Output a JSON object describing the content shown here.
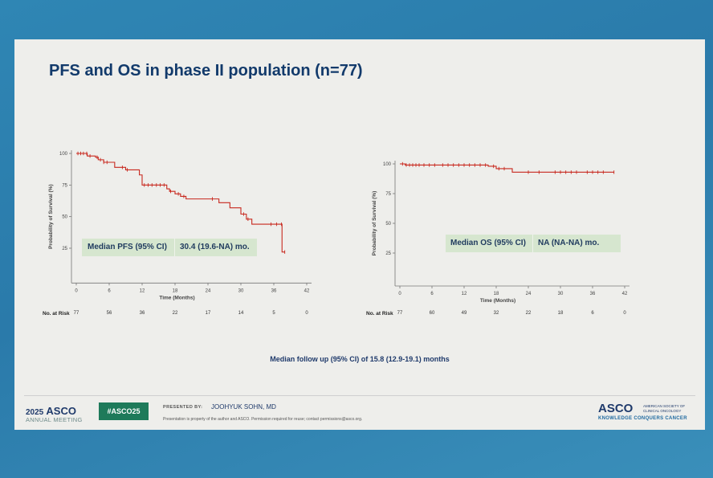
{
  "slide": {
    "title": "PFS and OS in phase II population (n=77)",
    "followup": "Median follow up (95% CI) of 15.8 (12.9-19.1) months"
  },
  "chart_data": [
    {
      "type": "line",
      "name": "PFS",
      "xlabel": "Time (Months)",
      "ylabel": "Probability of Survival (%)",
      "xlim": [
        0,
        42
      ],
      "ylim": [
        0,
        100
      ],
      "x_ticks": [
        0,
        6,
        12,
        18,
        24,
        30,
        36,
        42
      ],
      "y_ticks": [
        25,
        50,
        75,
        100
      ],
      "color": "#c8281e",
      "series": [
        {
          "x": [
            0,
            1,
            2,
            3,
            3.5,
            4,
            5,
            6,
            7,
            8,
            9,
            10,
            11,
            11.5,
            12,
            14,
            16,
            16.5,
            17,
            18,
            19,
            20,
            22,
            24,
            26,
            27,
            28,
            30,
            31,
            32,
            34,
            35,
            36,
            37,
            37.5,
            38
          ],
          "y": [
            100,
            100,
            98,
            98,
            97,
            95,
            93,
            93,
            89,
            89,
            87,
            87,
            87,
            83,
            75,
            75,
            75,
            72,
            70,
            68,
            66,
            64,
            64,
            64,
            61,
            61,
            57,
            52,
            48,
            44,
            44,
            44,
            44,
            44,
            22,
            22
          ]
        }
      ],
      "censor_x": [
        0.3,
        0.8,
        1.3,
        1.9,
        2.5,
        3.8,
        4.4,
        5.0,
        5.6,
        8.4,
        9.3,
        12.4,
        13.1,
        13.8,
        14.6,
        15.3,
        16.0,
        17.2,
        18.6,
        19.6,
        24.8,
        30.5,
        31.3,
        35.5,
        36.5,
        37.4,
        38.0
      ],
      "median_label": "Median PFS (95% CI)",
      "median_value": "30.4 (19.6-NA) mo.",
      "at_risk": [
        77,
        56,
        36,
        22,
        17,
        14,
        5,
        0
      ],
      "at_risk_label": "No. at Risk"
    },
    {
      "type": "line",
      "name": "OS",
      "xlabel": "Time (Months)",
      "ylabel": "Probability of Survival (%)",
      "xlim": [
        0,
        42
      ],
      "ylim": [
        0,
        100
      ],
      "x_ticks": [
        0,
        6,
        12,
        18,
        24,
        30,
        36,
        42
      ],
      "y_ticks": [
        25,
        50,
        75,
        100
      ],
      "color": "#c8281e",
      "series": [
        {
          "x": [
            0,
            1,
            6,
            12,
            16,
            16.5,
            18,
            20,
            21,
            24,
            30,
            36,
            40
          ],
          "y": [
            100,
            99,
            99,
            99,
            99,
            98,
            96,
            96,
            93,
            93,
            93,
            93,
            93
          ]
        }
      ],
      "censor_x": [
        0.5,
        1.2,
        1.8,
        2.4,
        3.0,
        3.6,
        4.5,
        5.5,
        6.5,
        8.0,
        9.0,
        10.0,
        11.0,
        12.0,
        13.0,
        14.0,
        15.0,
        16.0,
        17.5,
        18.5,
        19.5,
        24.0,
        26.0,
        29.0,
        30.0,
        31.0,
        32.0,
        33.0,
        35.0,
        36.0,
        37.0,
        38.0,
        40.0
      ],
      "median_label": "Median OS (95% CI)",
      "median_value": "NA (NA-NA) mo.",
      "at_risk": [
        77,
        60,
        49,
        32,
        22,
        18,
        6,
        0
      ],
      "at_risk_label": "No. at Risk"
    }
  ],
  "footer": {
    "year": "2025",
    "asco": "ASCO",
    "meeting": "ANNUAL MEETING",
    "hashtag": "#ASCO25",
    "presented_by": "PRESENTED BY:",
    "presenter": "JOOHYUK SOHN, MD",
    "disclaimer": "Presentation is property of the author and ASCO. Permission required for reuse; contact permissions@asco.org.",
    "logo": "ASCO",
    "logo_sub": "AMERICAN SOCIETY OF CLINICAL ONCOLOGY",
    "tagline": "KNOWLEDGE CONQUERS CANCER"
  }
}
